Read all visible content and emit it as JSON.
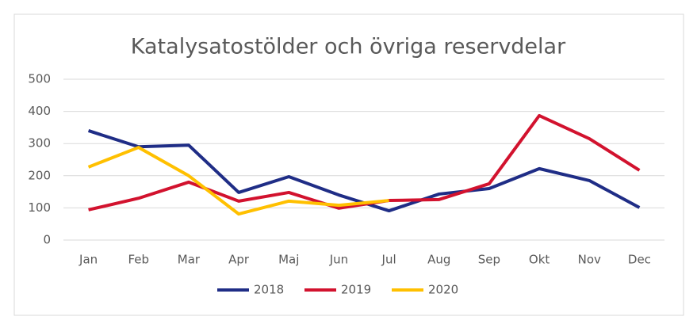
{
  "chart_data": {
    "type": "line",
    "title": "Katalysatostölder och övriga reservdelar",
    "categories": [
      "Jan",
      "Feb",
      "Mar",
      "Apr",
      "Maj",
      "Jun",
      "Jul",
      "Aug",
      "Sep",
      "Okt",
      "Nov",
      "Dec"
    ],
    "series": [
      {
        "name": "2018",
        "color": "#1f2d86",
        "values": [
          340,
          290,
          295,
          148,
          197,
          140,
          91,
          143,
          160,
          222,
          185,
          101
        ]
      },
      {
        "name": "2019",
        "color": "#d2122e",
        "values": [
          94,
          130,
          180,
          121,
          148,
          99,
          123,
          126,
          175,
          387,
          315,
          217
        ]
      },
      {
        "name": "2020",
        "color": "#ffc000",
        "values": [
          227,
          288,
          200,
          81,
          121,
          108,
          123,
          null,
          null,
          null,
          null,
          null
        ]
      }
    ],
    "ylim": [
      0,
      500
    ],
    "yticks": [
      0,
      100,
      200,
      300,
      400,
      500
    ],
    "grid": true,
    "legend": "bottom"
  }
}
